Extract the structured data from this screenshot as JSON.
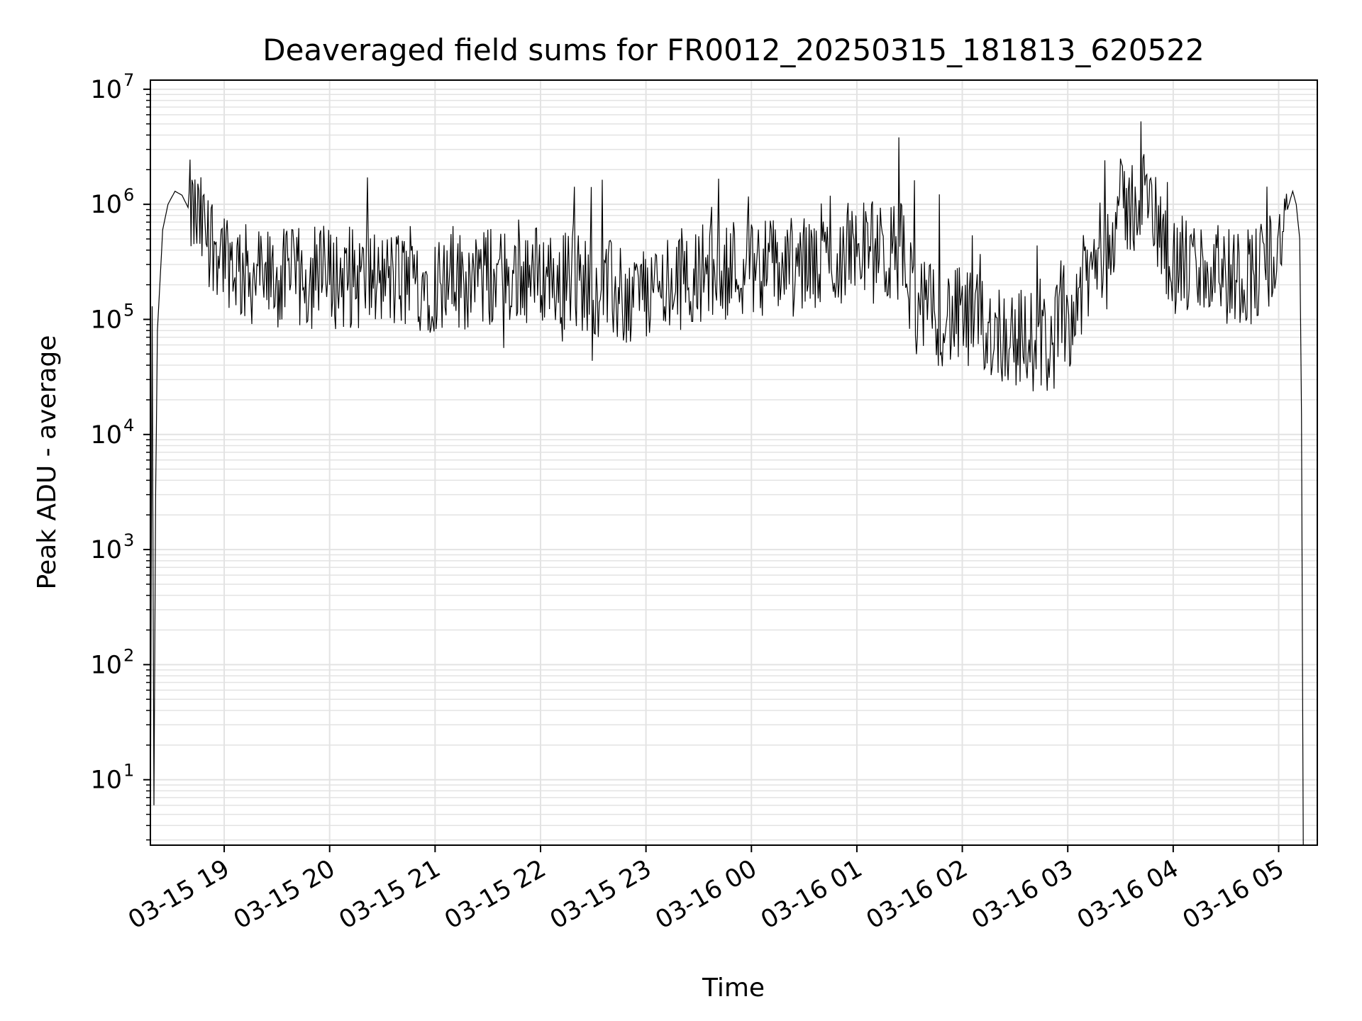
{
  "chart_data": {
    "type": "line",
    "title": "Deaveraged field sums for FR0012_20250315_181813_620522",
    "xlabel": "Time",
    "ylabel": "Peak ADU - average",
    "yscale": "log",
    "ylim": [
      2.7,
      12000000
    ],
    "xlim": [
      "2025-03-15 18:18",
      "2025-03-16 05:22"
    ],
    "grid": true,
    "line_color": "#000000",
    "grid_color": "#e3e3e3",
    "x_ticks": [
      {
        "value": "2025-03-15 19:00",
        "label": "03-15 19"
      },
      {
        "value": "2025-03-15 20:00",
        "label": "03-15 20"
      },
      {
        "value": "2025-03-15 21:00",
        "label": "03-15 21"
      },
      {
        "value": "2025-03-15 22:00",
        "label": "03-15 22"
      },
      {
        "value": "2025-03-15 23:00",
        "label": "03-15 23"
      },
      {
        "value": "2025-03-16 00:00",
        "label": "03-16 00"
      },
      {
        "value": "2025-03-16 01:00",
        "label": "03-16 01"
      },
      {
        "value": "2025-03-16 02:00",
        "label": "03-16 02"
      },
      {
        "value": "2025-03-16 03:00",
        "label": "03-16 03"
      },
      {
        "value": "2025-03-16 04:00",
        "label": "03-16 04"
      },
      {
        "value": "2025-03-16 05:00",
        "label": "03-16 05"
      }
    ],
    "y_ticks": [
      {
        "value": 10,
        "base": "10",
        "exp": "1"
      },
      {
        "value": 100,
        "base": "10",
        "exp": "2"
      },
      {
        "value": 1000,
        "base": "10",
        "exp": "3"
      },
      {
        "value": 10000,
        "base": "10",
        "exp": "4"
      },
      {
        "value": 100000,
        "base": "10",
        "exp": "5"
      },
      {
        "value": 1000000,
        "base": "10",
        "exp": "6"
      },
      {
        "value": 10000000,
        "base": "10",
        "exp": "7"
      }
    ],
    "series": [
      {
        "x": [
          "2025-03-15 18:18",
          "2025-03-15 18:19",
          "2025-03-15 18:20",
          "2025-03-15 18:21",
          "2025-03-15 18:22",
          "2025-03-15 18:25",
          "2025-03-15 18:28",
          "2025-03-15 18:32",
          "2025-03-15 18:36",
          "2025-03-15 18:40",
          "2025-03-15 18:45",
          "2025-03-15 18:52",
          "2025-03-15 19:00",
          "2025-03-15 19:10",
          "2025-03-15 19:30",
          "2025-03-15 20:00",
          "2025-03-15 20:30",
          "2025-03-15 21:00",
          "2025-03-15 21:30",
          "2025-03-15 22:00",
          "2025-03-15 22:30",
          "2025-03-15 22:50",
          "2025-03-15 23:10",
          "2025-03-15 23:30",
          "2025-03-16 00:00",
          "2025-03-16 00:30",
          "2025-03-16 00:50",
          "2025-03-16 01:00",
          "2025-03-16 01:15",
          "2025-03-16 01:25",
          "2025-03-16 01:35",
          "2025-03-16 02:00",
          "2025-03-16 02:30",
          "2025-03-16 02:50",
          "2025-03-16 03:00",
          "2025-03-16 03:15",
          "2025-03-16 03:30",
          "2025-03-16 03:45",
          "2025-03-16 04:00",
          "2025-03-16 04:30",
          "2025-03-16 04:50",
          "2025-03-16 05:00",
          "2025-03-16 05:05",
          "2025-03-16 05:08",
          "2025-03-16 05:10",
          "2025-03-16 05:12",
          "2025-03-16 05:13",
          "2025-03-16 05:14"
        ],
        "y": [
          2.7,
          130000,
          6,
          3000,
          80000,
          600000,
          1000000,
          1300000,
          1200000,
          900000,
          700000,
          500000,
          400000,
          250000,
          220000,
          230000,
          220000,
          210000,
          230000,
          250000,
          200000,
          150000,
          200000,
          260000,
          300000,
          280000,
          350000,
          450000,
          350000,
          400000,
          120000,
          100000,
          70000,
          60000,
          100000,
          300000,
          900000,
          1100000,
          300000,
          240000,
          260000,
          450000,
          900000,
          1300000,
          1000000,
          500000,
          15000,
          2.7
        ],
        "noise": 0.9
      }
    ]
  }
}
